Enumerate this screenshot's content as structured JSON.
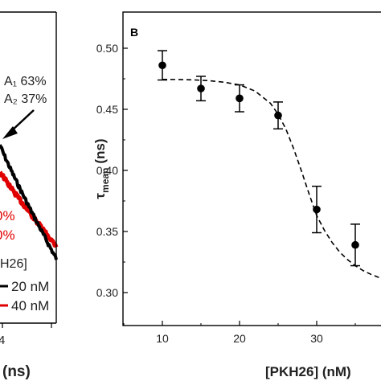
{
  "left_panel": {
    "annotation_line1": "A₁ 63%",
    "annotation_line2": "A₂ 37%",
    "red_partial_1": "0%",
    "red_partial_2": "0%",
    "legend_partial_title": "H26]",
    "legend_items": [
      {
        "label": "20 nM",
        "color": "#000000"
      },
      {
        "label": "40 nM",
        "color": "#e00000"
      }
    ],
    "partial_tick": "4",
    "partial_xlabel": "(ns)"
  },
  "chart_data": {
    "type": "scatter",
    "panel_label": "B",
    "xlabel": "[PKH26] (nM)",
    "ylabel_main": "τ",
    "ylabel_sub": "mean",
    "ylabel_unit": "(ns)",
    "xlim": [
      5,
      41
    ],
    "ylim": [
      0.285,
      0.525
    ],
    "xticks": [
      10,
      20,
      30
    ],
    "yticks": [
      0.3,
      0.35,
      0.4,
      0.45,
      0.5
    ],
    "ytick_labels": [
      "0.30",
      "0.35",
      "0.40",
      "0.45",
      "0.50"
    ],
    "series": [
      {
        "x": [
          10,
          15,
          20,
          25,
          30,
          35
        ],
        "y": [
          0.486,
          0.467,
          0.459,
          0.445,
          0.368,
          0.339
        ],
        "yerr": [
          0.012,
          0.01,
          0.011,
          0.011,
          0.019,
          0.017
        ],
        "color": "#000000"
      }
    ],
    "fit_curve": {
      "style": "dashed",
      "x": [
        10,
        12,
        14,
        16,
        18,
        20,
        22,
        24,
        25,
        26,
        27,
        28,
        29,
        30,
        31,
        32,
        33,
        34,
        35,
        36,
        37,
        38,
        39,
        40,
        41
      ],
      "y": [
        0.4745,
        0.4744,
        0.4741,
        0.4735,
        0.4722,
        0.47,
        0.465,
        0.455,
        0.446,
        0.434,
        0.418,
        0.4,
        0.381,
        0.363,
        0.351,
        0.341,
        0.333,
        0.327,
        0.322,
        0.318,
        0.315,
        0.3125,
        0.311,
        0.31,
        0.309
      ]
    }
  }
}
